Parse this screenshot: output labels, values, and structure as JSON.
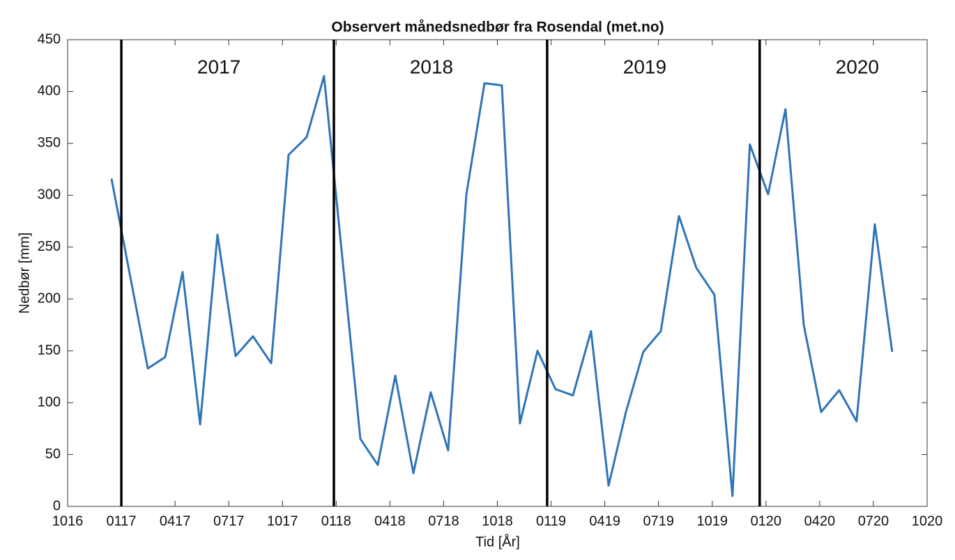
{
  "chart_data": {
    "type": "line",
    "title": "Observert månedsnedbør fra Rosendal (met.no)",
    "x_label": "Tid [År]",
    "y_label": "Nedbør [mm]",
    "x": [
      2.45,
      3.46,
      4.48,
      5.45,
      6.42,
      7.4,
      8.37,
      9.38,
      10.35,
      11.37,
      12.34,
      13.35,
      14.32,
      15.34,
      16.35,
      17.32,
      18.3,
      19.31,
      20.28,
      21.25,
      22.27,
      23.28,
      24.25,
      25.26,
      26.24,
      27.25,
      28.22,
      29.23,
      30.21,
      31.18,
      32.15,
      33.13,
      34.14,
      35.11,
      36.12,
      37.13,
      38.1,
      39.12,
      40.09,
      41.11,
      42.08,
      43.09,
      44.06,
      45.08,
      46.05
    ],
    "series": [
      {
        "color": "#2f74b8",
        "values": [
          316,
          225,
          133,
          144,
          226,
          79,
          262,
          145,
          164,
          138,
          339,
          356,
          415,
          240,
          65,
          40,
          126,
          32,
          110,
          54,
          301,
          408,
          406,
          80,
          150,
          113,
          107,
          169,
          20,
          91,
          149,
          169,
          280,
          230,
          204,
          10,
          349,
          301,
          383,
          175,
          91,
          112,
          82,
          272,
          149
        ]
      }
    ],
    "xlim": [
      0,
      48
    ],
    "xticks": [
      {
        "value": 0,
        "label": "1016"
      },
      {
        "value": 3,
        "label": "0117"
      },
      {
        "value": 6,
        "label": "0417"
      },
      {
        "value": 9,
        "label": "0717"
      },
      {
        "value": 12,
        "label": "1017"
      },
      {
        "value": 15,
        "label": "0118"
      },
      {
        "value": 18,
        "label": "0418"
      },
      {
        "value": 21,
        "label": "0718"
      },
      {
        "value": 24,
        "label": "1018"
      },
      {
        "value": 27,
        "label": "0119"
      },
      {
        "value": 30,
        "label": "0419"
      },
      {
        "value": 33,
        "label": "0719"
      },
      {
        "value": 36,
        "label": "1019"
      },
      {
        "value": 39,
        "label": "0120"
      },
      {
        "value": 42,
        "label": "0420"
      },
      {
        "value": 45,
        "label": "0720"
      },
      {
        "value": 48,
        "label": "1020"
      }
    ],
    "ylim": [
      0,
      450
    ],
    "yticks": [
      0,
      50,
      100,
      150,
      200,
      250,
      300,
      350,
      400,
      450
    ],
    "year_lines": [
      {
        "x": 3,
        "label": "2017"
      },
      {
        "x": 14.87,
        "label": "2018"
      },
      {
        "x": 26.78,
        "label": "2019"
      },
      {
        "x": 38.65,
        "label": "2020"
      }
    ],
    "year_line_color": "#000000"
  }
}
